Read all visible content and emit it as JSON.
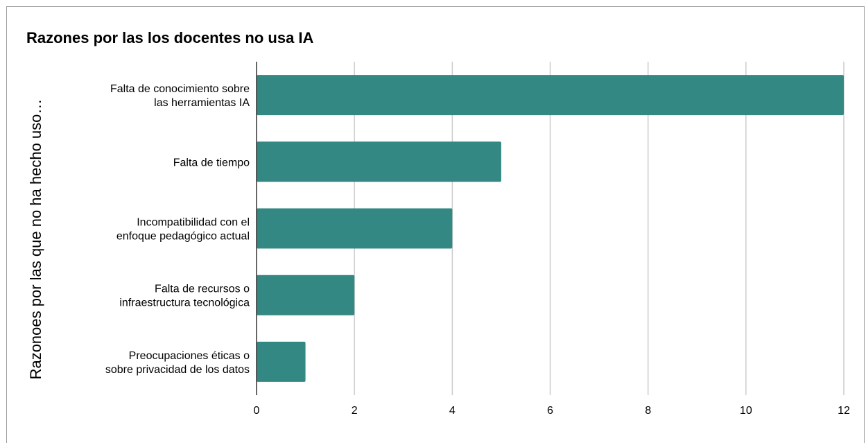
{
  "chart_data": {
    "type": "bar",
    "orientation": "horizontal",
    "title": "Razones por las los docentes no usa IA",
    "xlabel": "",
    "ylabel": "Razonoes por las que no ha hecho uso…",
    "categories": [
      [
        "Falta de conocimiento sobre",
        "las herramientas IA"
      ],
      [
        "Falta de tiempo"
      ],
      [
        "Incompatibilidad con el",
        "enfoque pedagógico actual"
      ],
      [
        "Falta de recursos o",
        "infraestructura tecnológica"
      ],
      [
        "Preocupaciones éticas o",
        "sobre privacidad de los datos"
      ]
    ],
    "values": [
      12,
      5,
      4,
      2,
      1
    ],
    "xlim": [
      0,
      12
    ],
    "xticks": [
      "0",
      "2",
      "4",
      "6",
      "8",
      "10",
      "12"
    ],
    "grid": true,
    "bar_color": "#348883",
    "grid_color": "#cccccc"
  }
}
